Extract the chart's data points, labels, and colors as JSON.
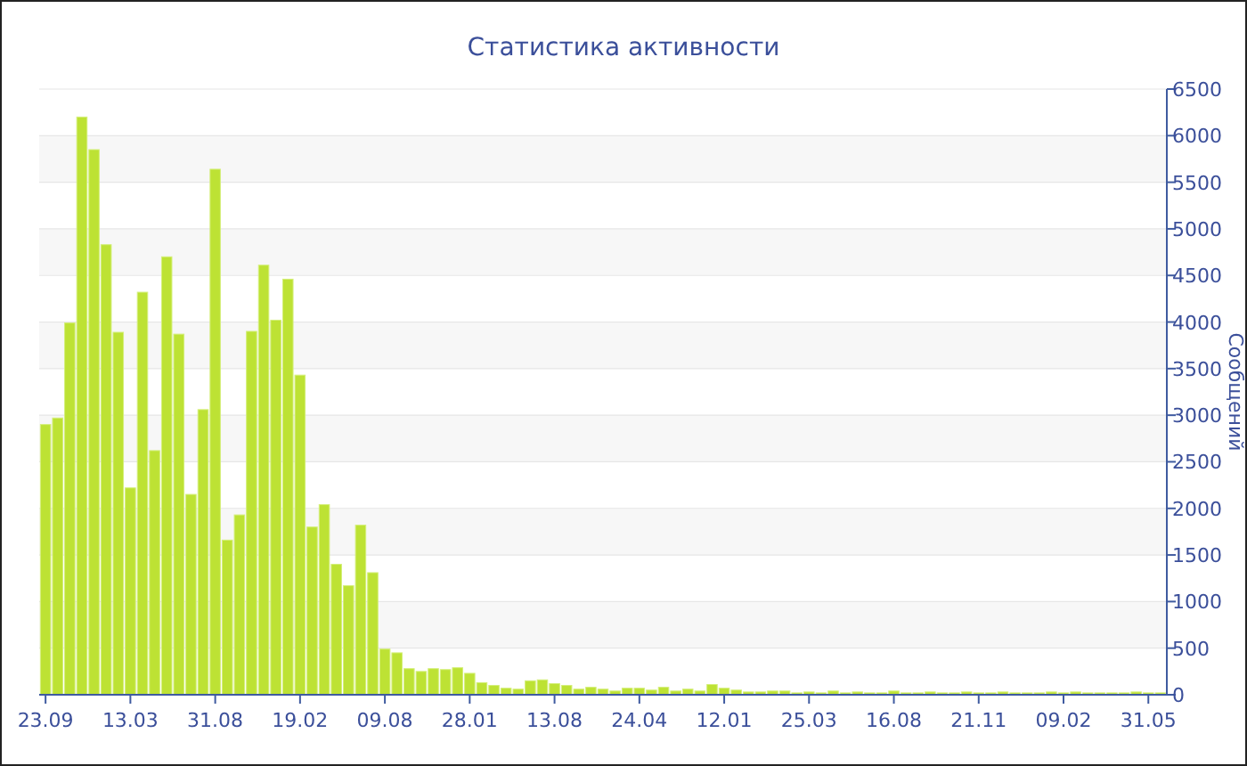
{
  "chart_data": {
    "type": "bar",
    "title": "Статистика активности",
    "ylabel": "Сообщений",
    "categories": [
      "23.09",
      null,
      null,
      null,
      null,
      null,
      null,
      "13.03",
      null,
      null,
      null,
      null,
      null,
      null,
      "31.08",
      null,
      null,
      null,
      null,
      null,
      null,
      "19.02",
      null,
      null,
      null,
      null,
      null,
      null,
      "09.08",
      null,
      null,
      null,
      null,
      null,
      null,
      "28.01",
      null,
      null,
      null,
      null,
      null,
      null,
      "13.08",
      null,
      null,
      null,
      null,
      null,
      null,
      "24.04",
      null,
      null,
      null,
      null,
      null,
      null,
      "12.01",
      null,
      null,
      null,
      null,
      null,
      null,
      "25.03",
      null,
      null,
      null,
      null,
      null,
      null,
      "16.08",
      null,
      null,
      null,
      null,
      null,
      null,
      "21.11",
      null,
      null,
      null,
      null,
      null,
      null,
      "09.02",
      null,
      null,
      null,
      null,
      null,
      null,
      "31.05",
      null
    ],
    "values": [
      2900,
      2970,
      3990,
      6200,
      5850,
      4830,
      3890,
      2220,
      4320,
      2620,
      4700,
      3870,
      2150,
      3060,
      5640,
      1660,
      1930,
      3900,
      4610,
      4020,
      4460,
      3430,
      1800,
      2040,
      1400,
      1170,
      1820,
      1310,
      490,
      450,
      280,
      250,
      280,
      270,
      290,
      230,
      130,
      100,
      70,
      60,
      150,
      160,
      120,
      100,
      60,
      80,
      60,
      40,
      70,
      70,
      50,
      80,
      40,
      60,
      40,
      110,
      70,
      50,
      30,
      30,
      40,
      40,
      20,
      30,
      20,
      40,
      20,
      30,
      20,
      20,
      40,
      20,
      20,
      30,
      20,
      20,
      30,
      20,
      20,
      30,
      20,
      20,
      20,
      30,
      20,
      30,
      20,
      20,
      20,
      20,
      30,
      20,
      20
    ],
    "color": "#bde234",
    "ylim": [
      0,
      6500
    ],
    "yticks": [
      0,
      500,
      1000,
      1500,
      2000,
      2500,
      3000,
      3500,
      4000,
      4500,
      5000,
      5500,
      6000,
      6500
    ],
    "grid": "y"
  }
}
